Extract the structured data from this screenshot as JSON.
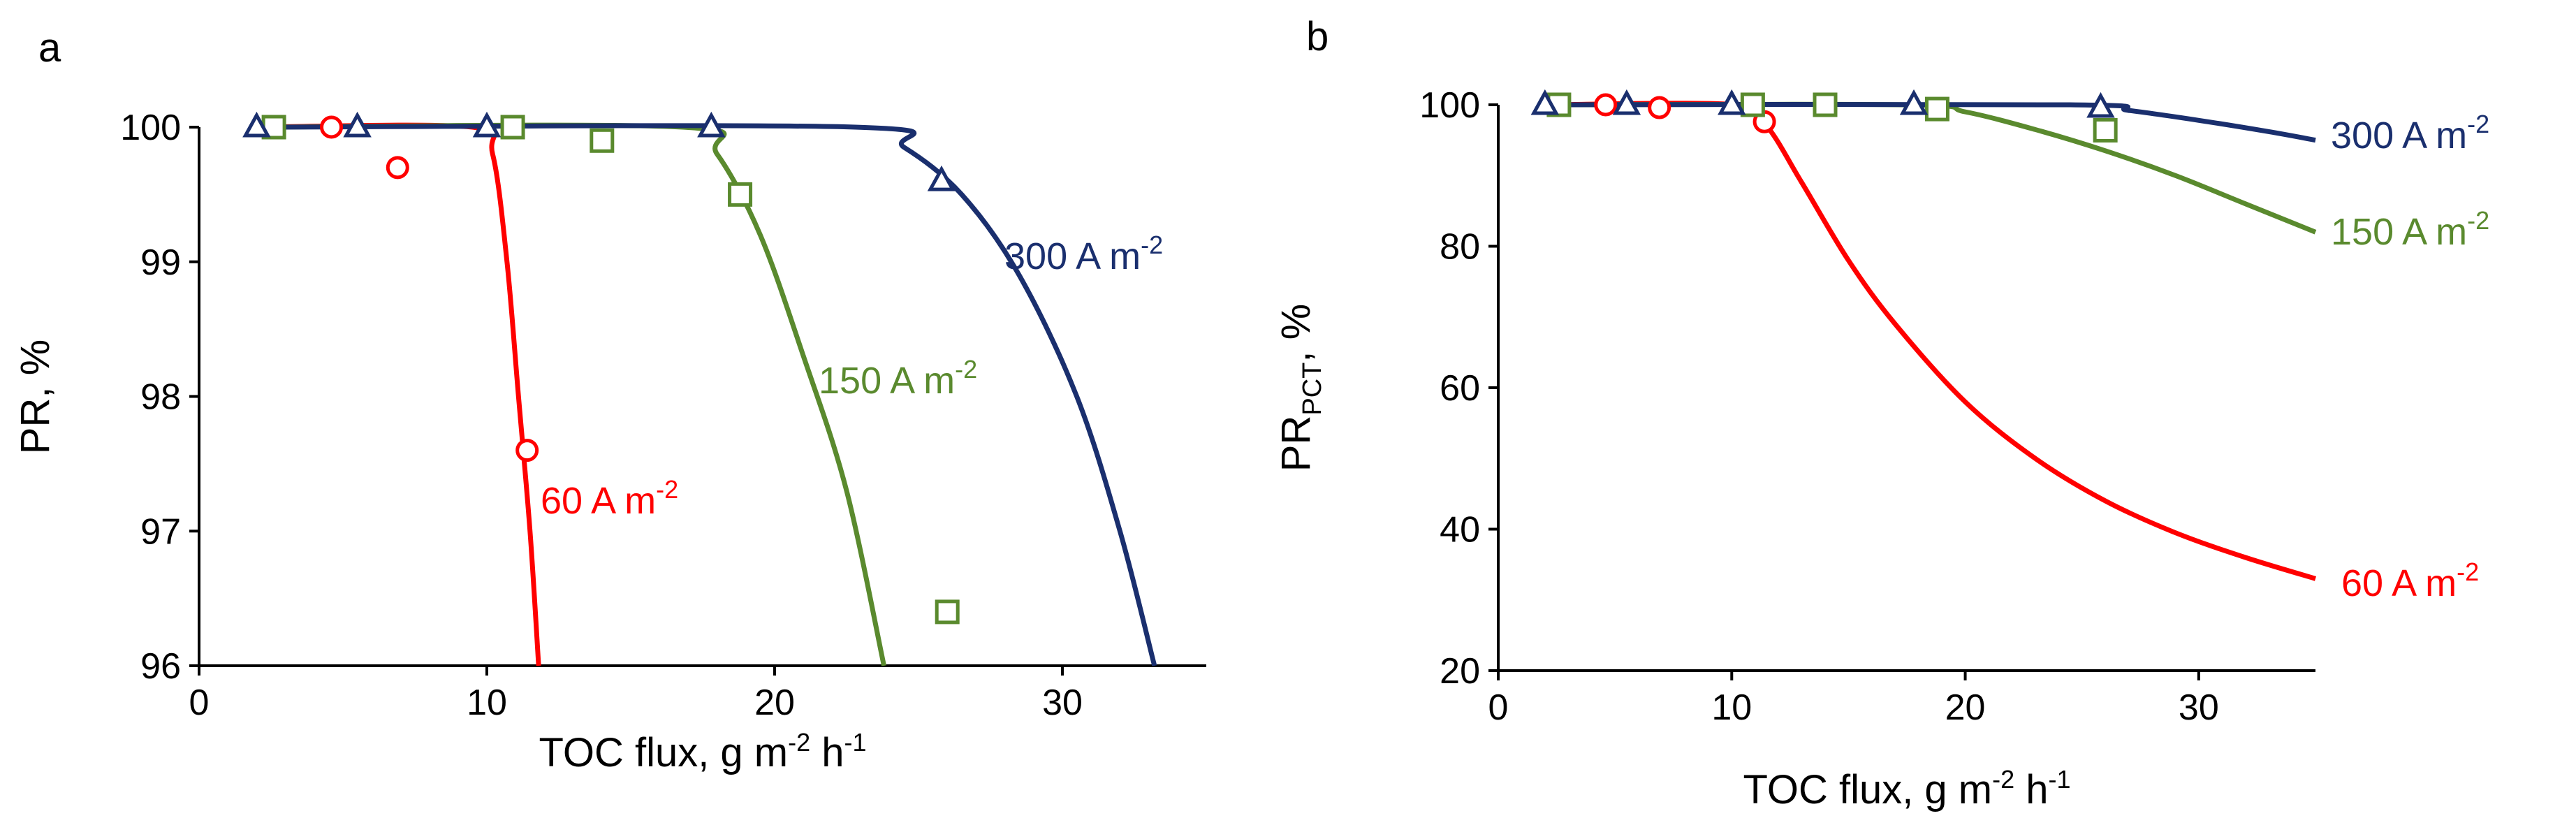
{
  "chart_data": [
    {
      "panel": "a",
      "type": "line",
      "xlabel": "TOC flux, g m-2 h-1",
      "ylabel": "PR, %",
      "xlim": [
        0,
        35
      ],
      "ylim": [
        96,
        100
      ],
      "xticks": [
        0,
        10,
        20,
        30
      ],
      "yticks": [
        96,
        97,
        98,
        99,
        100
      ],
      "grid": false,
      "series": [
        {
          "name": "60 A m-2",
          "color": "#ff0000",
          "marker": "circle",
          "points": [
            {
              "x": 4.6,
              "y": 100.0
            },
            {
              "x": 6.9,
              "y": 99.7
            },
            {
              "x": 11.4,
              "y": 97.6
            }
          ],
          "fit": [
            [
              2,
              100
            ],
            [
              9.5,
              100
            ],
            [
              10.2,
              99.8
            ],
            [
              10.7,
              99.0
            ],
            [
              11.1,
              98.0
            ],
            [
              11.5,
              97.0
            ],
            [
              11.8,
              96.0
            ]
          ]
        },
        {
          "name": "150 A m-2",
          "color": "#5a8a2e",
          "marker": "square",
          "points": [
            {
              "x": 2.6,
              "y": 100.0
            },
            {
              "x": 10.9,
              "y": 100.0
            },
            {
              "x": 14.0,
              "y": 99.9
            },
            {
              "x": 18.8,
              "y": 99.5
            },
            {
              "x": 26.0,
              "y": 96.4
            }
          ],
          "fit": [
            [
              2,
              100
            ],
            [
              16.8,
              100
            ],
            [
              18.0,
              99.8
            ],
            [
              19.5,
              99.2
            ],
            [
              21.0,
              98.3
            ],
            [
              22.5,
              97.3
            ],
            [
              23.8,
              96.0
            ]
          ]
        },
        {
          "name": "300 A m-2",
          "color": "#1a2f6e",
          "marker": "triangle",
          "points": [
            {
              "x": 2.0,
              "y": 100.0
            },
            {
              "x": 5.5,
              "y": 100.0
            },
            {
              "x": 10.0,
              "y": 100.0
            },
            {
              "x": 17.8,
              "y": 100.0
            },
            {
              "x": 25.8,
              "y": 99.6
            }
          ],
          "fit": [
            [
              2,
              100
            ],
            [
              22.8,
              100
            ],
            [
              24.5,
              99.85
            ],
            [
              26.5,
              99.5
            ],
            [
              28.5,
              98.9
            ],
            [
              30.5,
              98.0
            ],
            [
              32.0,
              97.0
            ],
            [
              33.2,
              96.0
            ]
          ]
        }
      ]
    },
    {
      "panel": "b",
      "type": "line",
      "xlabel": "TOC flux, g m-2 h-1",
      "ylabel": "PRPCT, %",
      "xlim": [
        0,
        35
      ],
      "ylim": [
        20,
        100
      ],
      "xticks": [
        0,
        10,
        20,
        30
      ],
      "yticks": [
        20,
        40,
        60,
        80,
        100
      ],
      "grid": false,
      "series": [
        {
          "name": "60 A m-2",
          "color": "#ff0000",
          "marker": "circle",
          "points": [
            {
              "x": 4.6,
              "y": 100.0
            },
            {
              "x": 6.9,
              "y": 99.6
            },
            {
              "x": 11.4,
              "y": 97.6
            }
          ],
          "fit": [
            [
              2,
              100
            ],
            [
              10.2,
              100
            ],
            [
              11.5,
              97
            ],
            [
              13,
              89
            ],
            [
              15,
              78
            ],
            [
              17,
              69
            ],
            [
              20,
              58
            ],
            [
              23,
              50
            ],
            [
              26,
              44
            ],
            [
              29,
              39.5
            ],
            [
              32,
              36
            ],
            [
              35,
              33
            ]
          ]
        },
        {
          "name": "150 A m-2",
          "color": "#5a8a2e",
          "marker": "square",
          "points": [
            {
              "x": 2.6,
              "y": 100.0
            },
            {
              "x": 10.9,
              "y": 100.0
            },
            {
              "x": 14.0,
              "y": 100.0
            },
            {
              "x": 18.8,
              "y": 99.4
            },
            {
              "x": 26.0,
              "y": 96.4
            }
          ],
          "fit": [
            [
              2,
              100
            ],
            [
              17.5,
              100
            ],
            [
              20,
              99
            ],
            [
              23,
              96.5
            ],
            [
              26,
              93.5
            ],
            [
              29,
              90
            ],
            [
              32,
              86
            ],
            [
              35,
              82
            ]
          ]
        },
        {
          "name": "300 A m-2",
          "color": "#1a2f6e",
          "marker": "triangle",
          "points": [
            {
              "x": 2.0,
              "y": 100.0
            },
            {
              "x": 5.5,
              "y": 100.0
            },
            {
              "x": 10.0,
              "y": 100.0
            },
            {
              "x": 17.8,
              "y": 100.0
            },
            {
              "x": 25.8,
              "y": 99.6
            }
          ],
          "fit": [
            [
              2,
              100
            ],
            [
              24.5,
              100
            ],
            [
              27,
              99.2
            ],
            [
              30,
              97.8
            ],
            [
              33,
              96.2
            ],
            [
              35,
              95
            ]
          ]
        }
      ]
    }
  ]
}
